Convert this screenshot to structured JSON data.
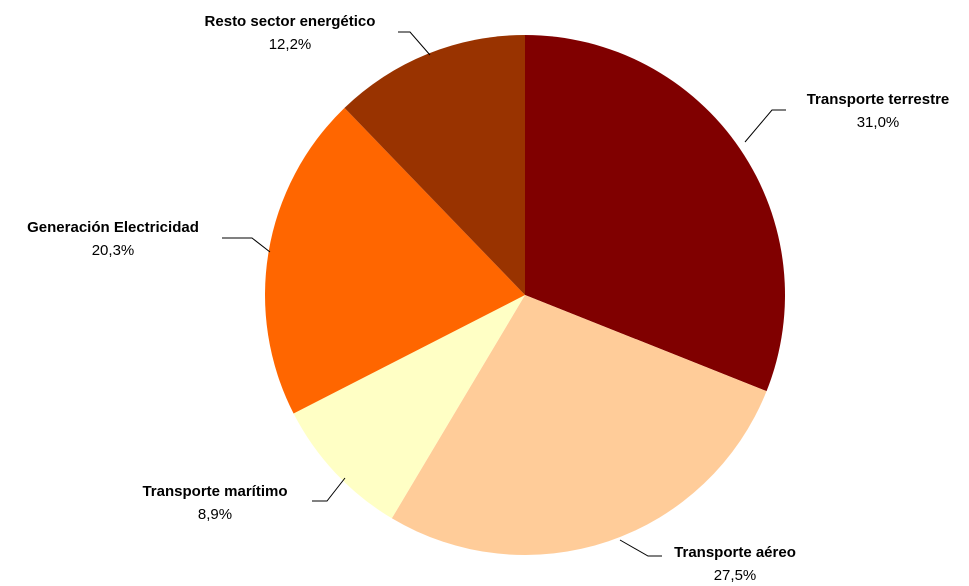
{
  "chart_data": {
    "type": "pie",
    "categories": [
      "Transporte terrestre",
      "Transporte aéreo",
      "Transporte marítimo",
      "Generación Electricidad",
      "Resto sector energético"
    ],
    "values": [
      31.0,
      27.5,
      8.9,
      20.3,
      12.2
    ],
    "value_labels": [
      "31,0%",
      "27,5%",
      "8,9%",
      "20,3%",
      "12,2%"
    ],
    "colors": [
      "#800000",
      "#FFCC99",
      "#FFFFC5",
      "#FF6600",
      "#993300"
    ]
  }
}
